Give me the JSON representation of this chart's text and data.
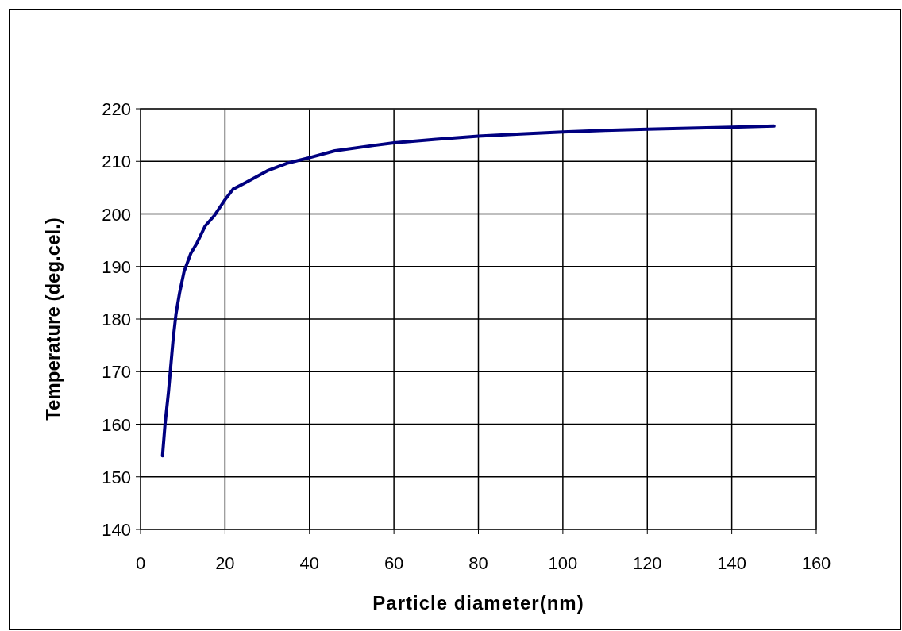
{
  "chart_data": {
    "type": "line",
    "xlabel": "Particle diameter(nm)",
    "ylabel": "Temperature (deg.cel.)",
    "x": [
      5.2,
      5.8,
      6.6,
      7.1,
      7.7,
      8.4,
      9.25,
      10.3,
      11.9,
      13.4,
      15.3,
      17.5,
      20,
      21.9,
      25,
      30,
      35,
      40,
      46,
      55,
      60,
      70,
      80,
      90,
      100,
      110,
      120,
      130,
      140,
      150
    ],
    "series": [
      {
        "color": "#000080",
        "values": [
          154,
          160,
          166,
          170.5,
          176,
          181,
          185,
          189,
          192.5,
          194.5,
          197.7,
          199.7,
          202.7,
          204.7,
          206,
          208.2,
          209.7,
          210.7,
          212,
          213,
          213.5,
          214.2,
          214.8,
          215.2,
          215.6,
          215.9,
          216.1,
          216.3,
          216.5,
          216.7
        ]
      }
    ],
    "xlim": [
      0,
      160
    ],
    "xticks": [
      0,
      20,
      40,
      60,
      80,
      100,
      120,
      140,
      160
    ],
    "ylim": [
      140,
      220
    ],
    "yticks": [
      140,
      150,
      160,
      170,
      180,
      190,
      200,
      210,
      220
    ],
    "grid": true,
    "marker": "none",
    "line_style": "solid"
  }
}
